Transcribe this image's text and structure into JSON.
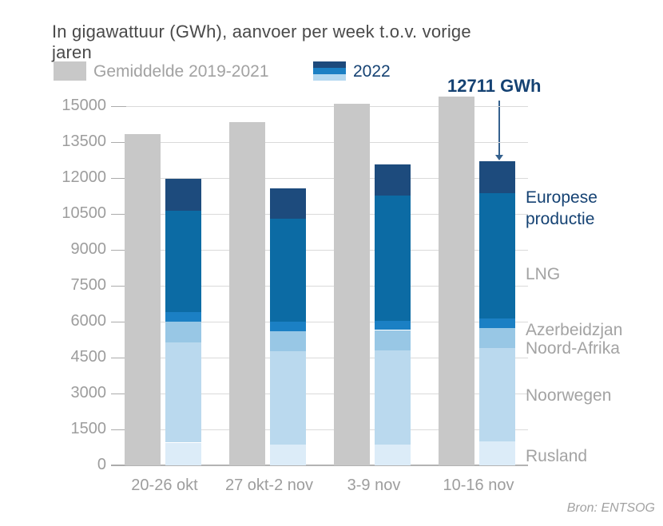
{
  "title": "In gigawattuur (GWh), aanvoer per week t.o.v. vorige jaren",
  "legend": {
    "average_label": "Gemiddelde 2019-2021",
    "year_label": "2022"
  },
  "annotation": "12711 GWh",
  "source": "Bron: ENTSOG",
  "colors": {
    "accent_navy": "#154273",
    "average_bar": "#c8c8c8",
    "grid_line": "#dadada",
    "axis_line": "#b3b3b3",
    "tick": "#ababab",
    "axis_text": "#9d9d9d",
    "gray_text": "#a2a2a2",
    "title_text": "#4a4a4a",
    "arrow": "#35618e",
    "legend_swatch_stripes": [
      "#1d4a7c",
      "#1b80c4",
      "#b3d8f0"
    ]
  },
  "chart_data": {
    "type": "bar",
    "title": "In gigawattuur (GWh), aanvoer per week t.o.v. vorige jaren",
    "categories": [
      "20-26 okt",
      "27 okt-2 nov",
      "3-9 nov",
      "10-16 nov"
    ],
    "y_ticks": [
      0,
      1500,
      3000,
      4500,
      6000,
      7500,
      9000,
      10500,
      12000,
      13500,
      15000
    ],
    "ylim": [
      0,
      15000
    ],
    "grid": true,
    "legend_position": "top",
    "average_series": {
      "name": "Gemiddelde 2019-2021",
      "color": "#c8c8c8",
      "values": [
        13850,
        14350,
        15100,
        15400
      ]
    },
    "stacked_series": [
      {
        "name": "Rusland",
        "color": "#dcecf8",
        "values": [
          950,
          880,
          870,
          990
        ]
      },
      {
        "name": "Noorwegen",
        "color": "#bad9ee",
        "values": [
          4180,
          3890,
          3920,
          3901
        ]
      },
      {
        "name": "Noord-Afrika",
        "color": "#98c7e5",
        "values": [
          860,
          830,
          860,
          840
        ]
      },
      {
        "name": "Azerbeidzjan",
        "color": "#1b80c4",
        "values": [
          420,
          390,
          370,
          390
        ]
      },
      {
        "name": "LNG",
        "color": "#0c6ba4",
        "values": [
          4220,
          4300,
          5240,
          5250
        ]
      },
      {
        "name": "Europese productie",
        "color": "#1d4b7d",
        "values": [
          1330,
          1270,
          1310,
          1340
        ]
      }
    ],
    "stacked_totals": [
      11960,
      11560,
      12570,
      12711
    ],
    "annotated_value": {
      "category": "10-16 nov",
      "value": 12711,
      "label": "12711 GWh"
    },
    "right_labels": [
      {
        "text": "Europese productie",
        "color": "#154273"
      },
      {
        "text": "LNG",
        "color": "#a3a3a3"
      },
      {
        "text": "Azerbeidzjan",
        "color": "#a3a3a3"
      },
      {
        "text": "Noord-Afrika",
        "color": "#a3a3a3"
      },
      {
        "text": "Noorwegen",
        "color": "#a3a3a3"
      },
      {
        "text": "Rusland",
        "color": "#a3a3a3"
      }
    ]
  }
}
